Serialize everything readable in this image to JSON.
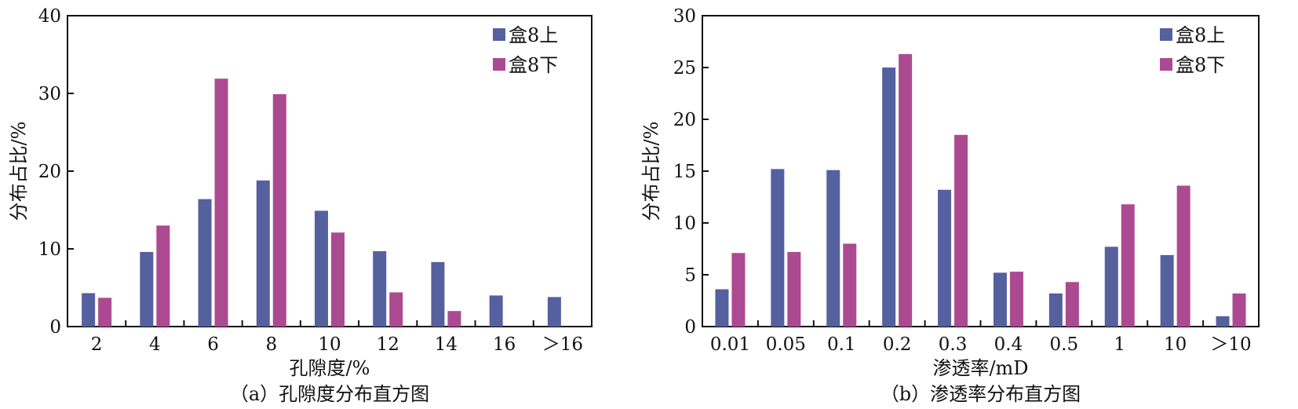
{
  "chart_data": [
    {
      "type": "bar",
      "caption": "（a）孔隙度分布直方图",
      "xlabel": "孔隙度/%",
      "ylabel": "分布占比/%",
      "categories": [
        "2",
        "4",
        "6",
        "8",
        "10",
        "12",
        "14",
        "16",
        "＞16"
      ],
      "ylim": [
        0,
        40
      ],
      "yticks": [
        0,
        10,
        20,
        30,
        40
      ],
      "legend": "top-right",
      "grid": false,
      "series": [
        {
          "name": "盒8上",
          "color": "#55609f",
          "values": [
            4.3,
            9.6,
            16.4,
            18.8,
            14.9,
            9.7,
            8.3,
            4.0,
            3.8
          ]
        },
        {
          "name": "盒8下",
          "color": "#ac4a91",
          "values": [
            3.7,
            13.0,
            31.9,
            29.9,
            12.1,
            4.4,
            2.0,
            0,
            0
          ]
        }
      ]
    },
    {
      "type": "bar",
      "caption": "（b）渗透率分布直方图",
      "xlabel": "渗透率/mD",
      "ylabel": "分布占比/%",
      "categories": [
        "0.01",
        "0.05",
        "0.1",
        "0.2",
        "0.3",
        "0.4",
        "0.5",
        "1",
        "10",
        "＞10"
      ],
      "ylim": [
        0,
        30
      ],
      "yticks": [
        0,
        5,
        10,
        15,
        20,
        25,
        30
      ],
      "legend": "top-right",
      "grid": false,
      "series": [
        {
          "name": "盒8上",
          "color": "#55609f",
          "values": [
            3.6,
            15.2,
            15.1,
            25.0,
            13.2,
            5.2,
            3.2,
            7.7,
            6.9,
            1.0
          ]
        },
        {
          "name": "盒8下",
          "color": "#ac4a91",
          "values": [
            7.1,
            7.2,
            8.0,
            26.3,
            18.5,
            5.3,
            4.3,
            11.8,
            13.6,
            3.2
          ]
        }
      ]
    }
  ]
}
